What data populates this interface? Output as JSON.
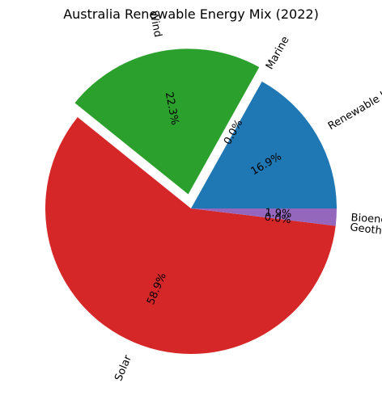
{
  "chart_data": {
    "type": "pie",
    "title": "Australia Renewable Energy Mix (2022)",
    "start_angle_deg": 0,
    "direction": "counterclockwise",
    "label_rotation": "radial",
    "slices": [
      {
        "label": "Renewable hydropower",
        "value": 16.9,
        "pct_label": "16.9%",
        "color": "#1f77b4",
        "exploded": false
      },
      {
        "label": "Marine",
        "value": 0.0,
        "pct_label": "0.0%",
        "color": "#ff7f0e",
        "exploded": false
      },
      {
        "label": "Wind",
        "value": 22.3,
        "pct_label": "22.3%",
        "color": "#2ca02c",
        "exploded": true
      },
      {
        "label": "Solar",
        "value": 58.9,
        "pct_label": "58.9%",
        "color": "#d62728",
        "exploded": false
      },
      {
        "label": "Geothermal",
        "value": 0.0,
        "pct_label": "0.0%",
        "color": "#9467bd",
        "exploded": false
      },
      {
        "label": "Bioenergy",
        "value": 1.9,
        "pct_label": "1.9%",
        "color": "#9467bd",
        "exploded": false
      }
    ]
  }
}
